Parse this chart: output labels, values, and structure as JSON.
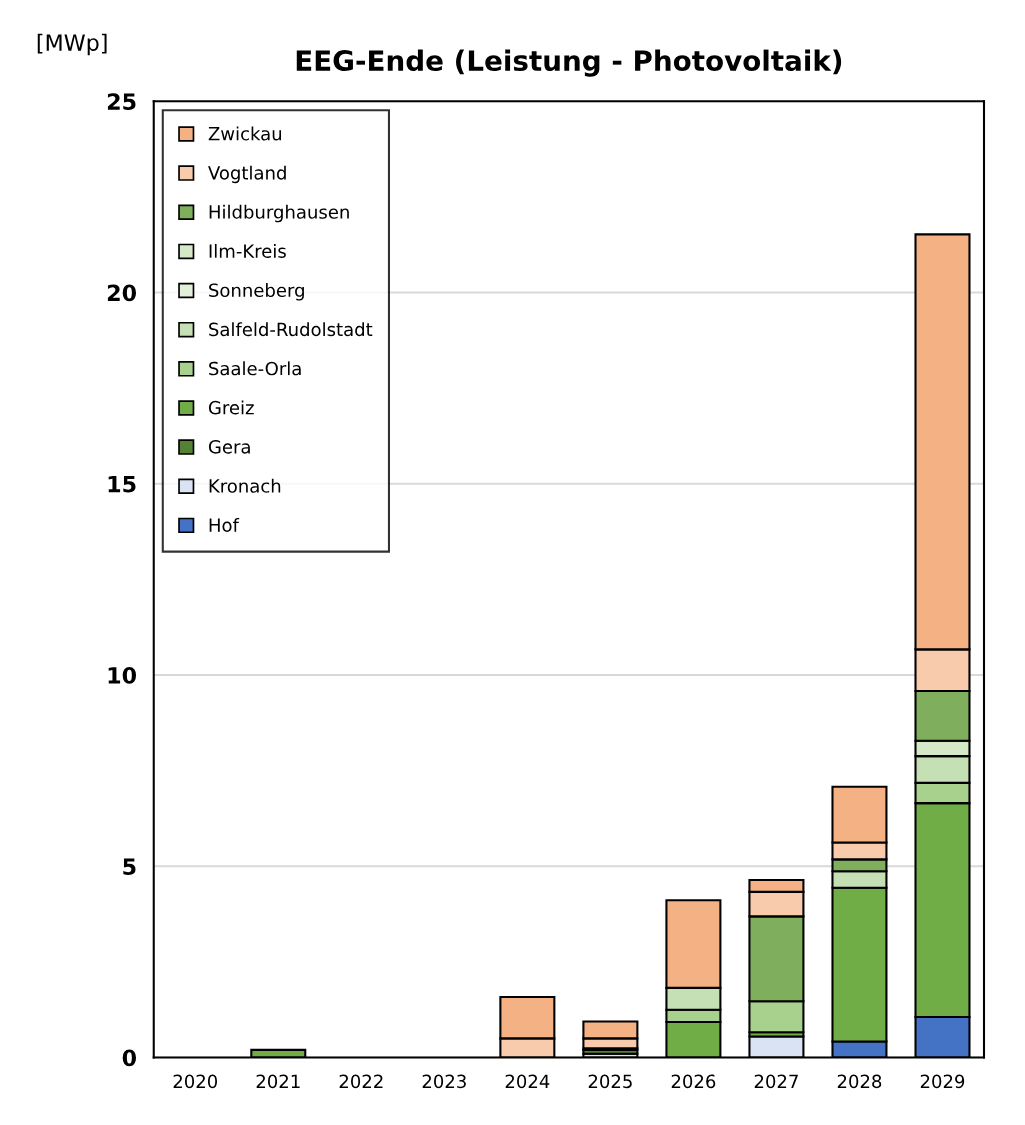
{
  "chart_data": {
    "type": "bar",
    "stacked": true,
    "title": "EEG-Ende (Leistung - Photovoltaik)",
    "ylabel": "[MWp]",
    "categories": [
      "2020",
      "2021",
      "2022",
      "2023",
      "2024",
      "2025",
      "2026",
      "2027",
      "2028",
      "2029"
    ],
    "series": [
      {
        "name": "Hof",
        "color": "#4472c4",
        "values": [
          0,
          0,
          0,
          0,
          0,
          0,
          0,
          0,
          0.42,
          1.06
        ]
      },
      {
        "name": "Kronach",
        "color": "#dae3f3",
        "values": [
          0,
          0,
          0,
          0,
          0,
          0.1,
          0,
          0.55,
          0,
          0
        ]
      },
      {
        "name": "Gera",
        "color": "#548235",
        "values": [
          0,
          0,
          0,
          0,
          0,
          0.1,
          0,
          0,
          0,
          0
        ]
      },
      {
        "name": "Greiz",
        "color": "#70ad47",
        "values": [
          0,
          0.2,
          0,
          0,
          0,
          0,
          0.93,
          0.11,
          4.02,
          5.59
        ]
      },
      {
        "name": "Saale-Orla",
        "color": "#a9d18e",
        "values": [
          0,
          0,
          0,
          0,
          0,
          0.04,
          0.32,
          0.81,
          0,
          0.53
        ]
      },
      {
        "name": "Salfeld-Rudolstadt",
        "color": "#c5e0b4",
        "values": [
          0,
          0,
          0,
          0,
          0,
          0,
          0.57,
          0,
          0.43,
          0.7
        ]
      },
      {
        "name": "Sonneberg",
        "color": "#e2f0d9",
        "values": [
          0,
          0,
          0,
          0,
          0,
          0,
          0,
          0,
          0,
          0
        ]
      },
      {
        "name": "Ilm-Kreis",
        "color": "#d5e8c8",
        "values": [
          0,
          0,
          0,
          0,
          0,
          0,
          0,
          0,
          0,
          0.4
        ]
      },
      {
        "name": "Hildburghausen",
        "color": "#7fae5c",
        "values": [
          0,
          0,
          0,
          0,
          0,
          0,
          0,
          2.22,
          0.31,
          1.3
        ]
      },
      {
        "name": "Vogtland",
        "color": "#f8cbad",
        "values": [
          0,
          0,
          0,
          0,
          0.5,
          0.26,
          0,
          0.64,
          0.44,
          1.09
        ]
      },
      {
        "name": "Zwickau",
        "color": "#f4b183",
        "values": [
          0,
          0,
          0,
          0,
          1.08,
          0.44,
          2.29,
          0.31,
          1.46,
          10.85
        ]
      }
    ],
    "ylim": [
      0,
      25
    ],
    "yticks": [
      0,
      5,
      10,
      15,
      20,
      25
    ],
    "grid": "y",
    "legend": "top left"
  }
}
